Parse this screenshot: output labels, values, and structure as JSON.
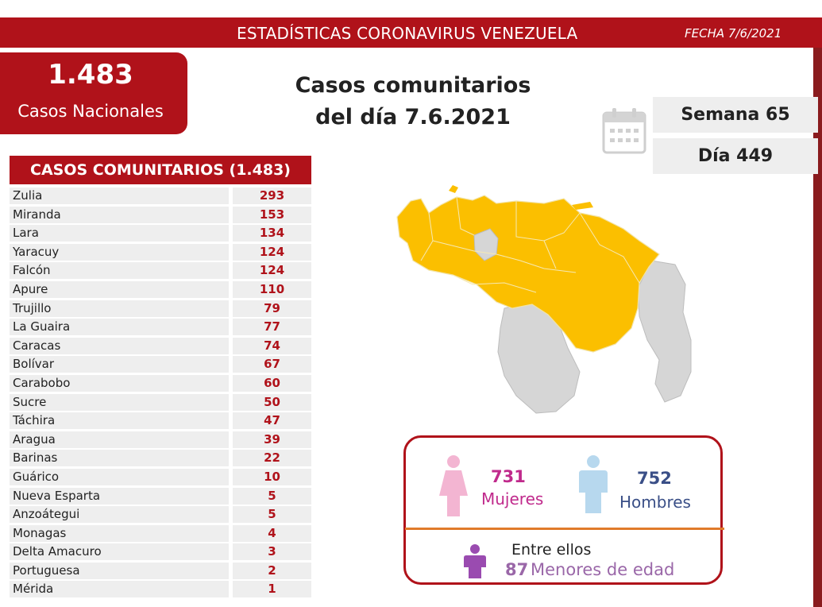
{
  "banner": {
    "title": "ESTADÍSTICAS CORONAVIRUS VENEZUELA",
    "date": "FECHA 7/6/2021"
  },
  "national": {
    "total": "1.483",
    "label": "Casos Nacionales"
  },
  "headline": {
    "line1": "Casos comunitarios",
    "line2": "del día 7.6.2021"
  },
  "calendar": {
    "week": "Semana 65",
    "day": "Día 449",
    "icon": "calendar-icon"
  },
  "table": {
    "title": "CASOS COMUNITARIOS (1.483)",
    "rows": [
      {
        "state": "Zulia",
        "cases": "293"
      },
      {
        "state": "Miranda",
        "cases": "153"
      },
      {
        "state": "Lara",
        "cases": "134"
      },
      {
        "state": "Yaracuy",
        "cases": "124"
      },
      {
        "state": "Falcón",
        "cases": "124"
      },
      {
        "state": "Apure",
        "cases": "110"
      },
      {
        "state": "Trujillo",
        "cases": "79"
      },
      {
        "state": "La Guaira",
        "cases": "77"
      },
      {
        "state": "Caracas",
        "cases": "74"
      },
      {
        "state": "Bolívar",
        "cases": "67"
      },
      {
        "state": "Carabobo",
        "cases": "60"
      },
      {
        "state": "Sucre",
        "cases": "50"
      },
      {
        "state": "Táchira",
        "cases": "47"
      },
      {
        "state": "Aragua",
        "cases": "39"
      },
      {
        "state": "Barinas",
        "cases": "22"
      },
      {
        "state": "Guárico",
        "cases": "10"
      },
      {
        "state": "Nueva Esparta",
        "cases": "5"
      },
      {
        "state": "Anzoátegui",
        "cases": "5"
      },
      {
        "state": "Monagas",
        "cases": "4"
      },
      {
        "state": "Delta Amacuro",
        "cases": "3"
      },
      {
        "state": "Portuguesa",
        "cases": "2"
      },
      {
        "state": "Mérida",
        "cases": "1"
      }
    ]
  },
  "gender": {
    "female_count": "731",
    "female_label": "Mujeres",
    "male_count": "752",
    "male_label": "Hombres",
    "minors_title": "Entre ellos",
    "minors_count": "87",
    "minors_label": "Menores de edad"
  },
  "colors": {
    "brand_red": "#b0121a",
    "map_yellow": "#fbbf00",
    "map_gray": "#d6d6d6",
    "female": "#c02a8c",
    "male": "#3a4f87",
    "minors": "#9a67a8"
  }
}
